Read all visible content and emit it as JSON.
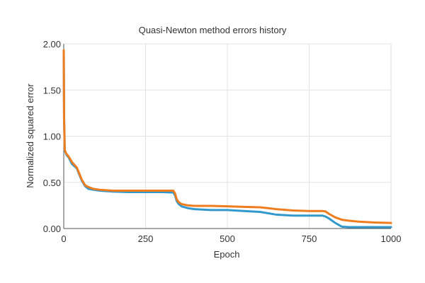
{
  "chart_data": {
    "type": "line",
    "title": "Quasi-Newton method errors history",
    "xlabel": "Epoch",
    "ylabel": "Normalized squared error",
    "xlim": [
      0,
      1000
    ],
    "ylim": [
      0,
      2.0
    ],
    "x_ticks": [
      {
        "value": 0,
        "label": "0"
      },
      {
        "value": 250,
        "label": "250"
      },
      {
        "value": 500,
        "label": "500"
      },
      {
        "value": 750,
        "label": "750"
      },
      {
        "value": 1000,
        "label": "1000"
      }
    ],
    "y_ticks": [
      {
        "value": 0,
        "label": "0.00"
      },
      {
        "value": 0.5,
        "label": "0.50"
      },
      {
        "value": 1.0,
        "label": "1.00"
      },
      {
        "value": 1.5,
        "label": "1.50"
      },
      {
        "value": 2.0,
        "label": "2.00"
      }
    ],
    "grid": true,
    "legend": "none",
    "series": [
      {
        "color": "#3399cc",
        "x": [
          0,
          1,
          3,
          8,
          15,
          25,
          40,
          55,
          65,
          75,
          90,
          110,
          150,
          200,
          250,
          300,
          335,
          340,
          345,
          350,
          360,
          380,
          400,
          450,
          500,
          550,
          600,
          650,
          700,
          750,
          790,
          800,
          810,
          830,
          850,
          870,
          900,
          950,
          1000
        ],
        "y": [
          1.93,
          1.2,
          0.85,
          0.8,
          0.77,
          0.7,
          0.65,
          0.52,
          0.46,
          0.43,
          0.42,
          0.41,
          0.4,
          0.395,
          0.395,
          0.395,
          0.39,
          0.36,
          0.3,
          0.27,
          0.24,
          0.22,
          0.21,
          0.2,
          0.2,
          0.19,
          0.18,
          0.15,
          0.14,
          0.14,
          0.14,
          0.13,
          0.11,
          0.06,
          0.02,
          0.015,
          0.015,
          0.015,
          0.015
        ]
      },
      {
        "color": "#ee7d1f",
        "x": [
          0,
          1,
          3,
          8,
          15,
          25,
          40,
          55,
          65,
          75,
          90,
          110,
          150,
          200,
          250,
          300,
          335,
          340,
          345,
          350,
          360,
          380,
          400,
          450,
          500,
          550,
          600,
          650,
          700,
          750,
          790,
          800,
          810,
          830,
          850,
          870,
          900,
          950,
          1000
        ],
        "y": [
          1.93,
          1.2,
          0.85,
          0.81,
          0.78,
          0.72,
          0.66,
          0.53,
          0.47,
          0.45,
          0.43,
          0.42,
          0.41,
          0.41,
          0.41,
          0.41,
          0.41,
          0.38,
          0.32,
          0.29,
          0.265,
          0.25,
          0.245,
          0.245,
          0.24,
          0.235,
          0.23,
          0.21,
          0.195,
          0.19,
          0.19,
          0.185,
          0.16,
          0.12,
          0.095,
          0.085,
          0.075,
          0.065,
          0.06
        ]
      }
    ]
  }
}
